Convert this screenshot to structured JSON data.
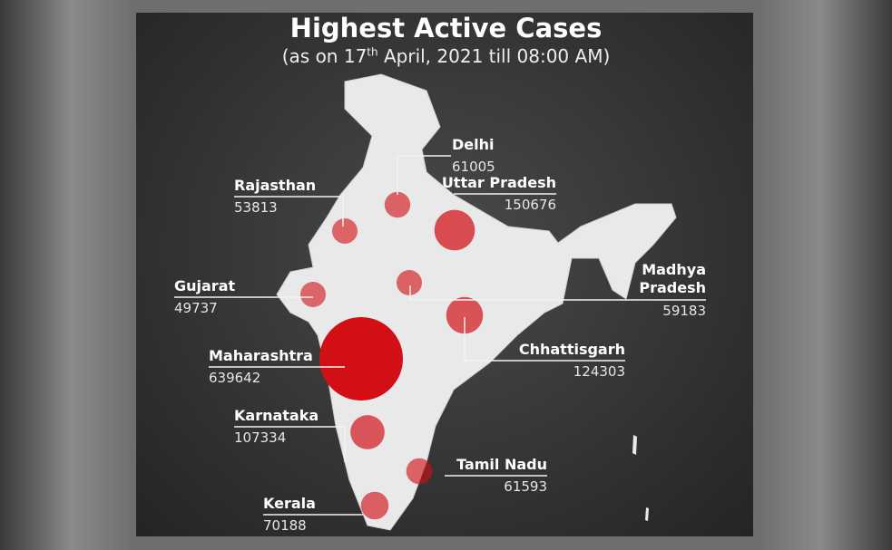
{
  "title": "Highest Active Cases",
  "subtitle": {
    "before": "(as on 17",
    "sup": "th",
    "after": " April, 2021 till 08:00 AM)"
  },
  "states": [
    {
      "name": "Delhi",
      "value": 61005
    },
    {
      "name": "Uttar Pradesh",
      "value": 150676
    },
    {
      "name": "Rajasthan",
      "value": 53813
    },
    {
      "name": "Gujarat",
      "value": 49737
    },
    {
      "name": "Madhya Pradesh",
      "value": 59183
    },
    {
      "name": "Chhattisgarh",
      "value": 124303
    },
    {
      "name": "Maharashtra",
      "value": 639642
    },
    {
      "name": "Karnataka",
      "value": 107334
    },
    {
      "name": "Tamil Nadu",
      "value": 61593
    },
    {
      "name": "Kerala",
      "value": 70188
    }
  ]
}
